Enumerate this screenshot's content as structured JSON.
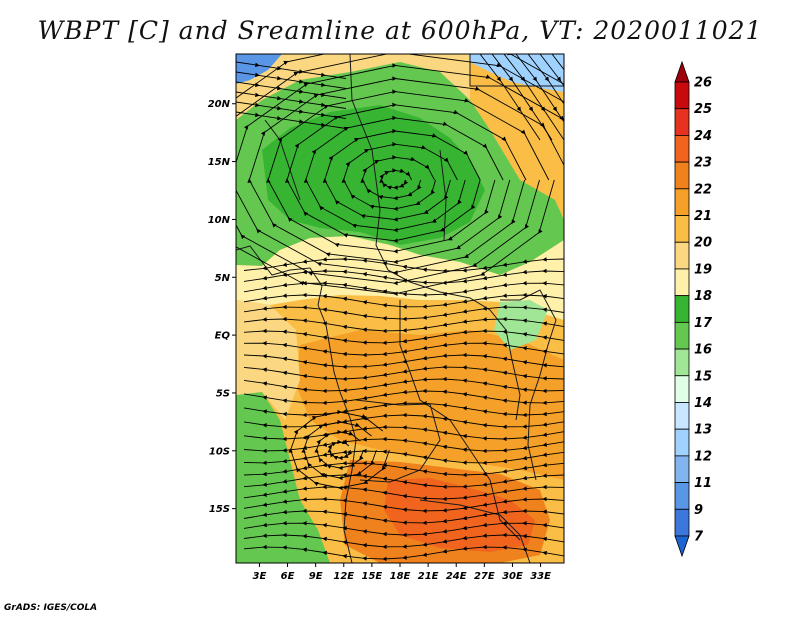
{
  "title": "WBPT [C] and Sreamline at 600hPa, VT: 2020011021",
  "credit": "GrADS: IGES/COLA",
  "map": {
    "lat_labels": [
      "20N",
      "15N",
      "10N",
      "5N",
      "EQ",
      "5S",
      "10S",
      "15S"
    ],
    "lon_labels": [
      "3E",
      "6E",
      "9E",
      "12E",
      "15E",
      "18E",
      "21E",
      "24E",
      "27E",
      "30E",
      "33E"
    ],
    "lat_values": [
      20,
      15,
      10,
      5,
      0,
      -5,
      -10,
      -15
    ],
    "lon_values": [
      3,
      6,
      9,
      12,
      15,
      18,
      21,
      24,
      27,
      30,
      33
    ],
    "lat_range": [
      -19.7,
      24.3
    ],
    "lon_range": [
      0.5,
      35.5
    ]
  },
  "colorbar": {
    "levels": [
      "26",
      "25",
      "24",
      "23",
      "22",
      "21",
      "20",
      "19",
      "18",
      "17",
      "16",
      "15",
      "14",
      "13",
      "12",
      "11",
      "9",
      "7"
    ],
    "colors": [
      "#a0000a",
      "#c80a0f",
      "#e6321e",
      "#f0641e",
      "#f0821e",
      "#f5a028",
      "#fabe46",
      "#fad780",
      "#fff0aa",
      "#37b432",
      "#64c850",
      "#a0e696",
      "#e1ffe6",
      "#c8e6ff",
      "#a0d2ff",
      "#82b4f0",
      "#5a96e6",
      "#3c78dc",
      "#1e64d2"
    ]
  },
  "colors": {
    "green_dark": "#37b432",
    "green_mid": "#64c850",
    "green_light": "#a0e696",
    "blue_light": "#a0d2ff",
    "blue_mid": "#5a96e6",
    "yellow": "#fff0aa",
    "tan": "#fad780",
    "orange_light": "#fabe46",
    "orange": "#f5a028",
    "orange_dark": "#f0821e",
    "red_orange": "#f0641e"
  }
}
